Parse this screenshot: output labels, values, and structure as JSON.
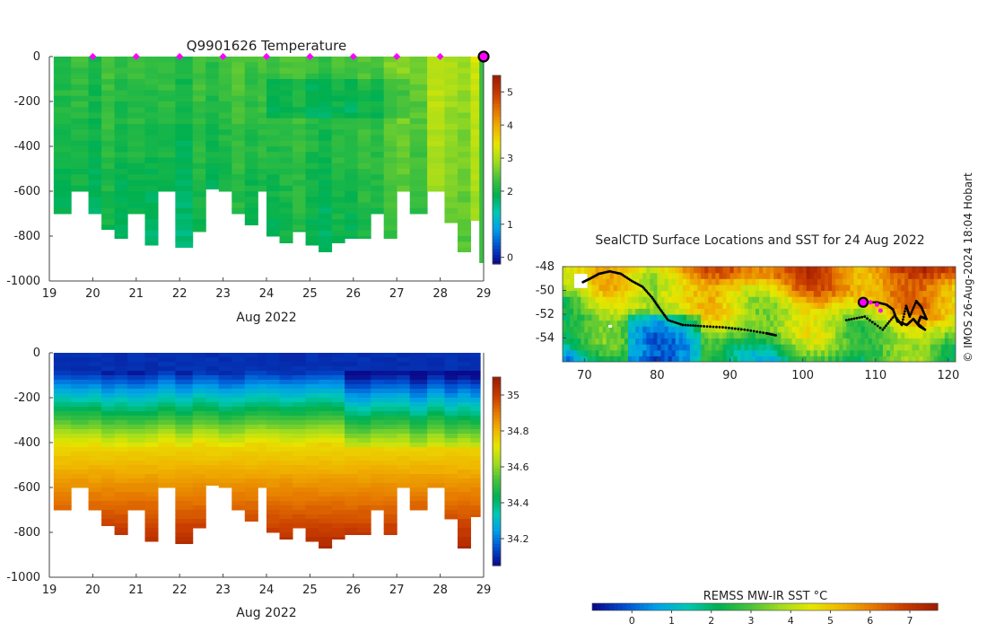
{
  "colors": {
    "temperature_scale": [
      "#0a0a8c",
      "#0050d0",
      "#00a0e8",
      "#00c8b4",
      "#00b050",
      "#46c23c",
      "#a0dc1e",
      "#e6e600",
      "#f0b400",
      "#e67800",
      "#c83c00",
      "#a01e00"
    ],
    "salinity_scale": [
      "#0a0a8c",
      "#0050d0",
      "#00a0e8",
      "#00c8b4",
      "#00b050",
      "#46c23c",
      "#a0dc1e",
      "#e6e600",
      "#f0b400",
      "#e67800",
      "#c83c00",
      "#a01e00"
    ],
    "sst_scale": [
      "#0a0a8c",
      "#0050d0",
      "#00a0e8",
      "#00c8b4",
      "#00b050",
      "#46c23c",
      "#a0dc1e",
      "#e6e600",
      "#f0b400",
      "#e67800",
      "#c83c00",
      "#a01e00"
    ],
    "profile_marker": "#ff00ff",
    "track": "#000000"
  },
  "chart_data": [
    {
      "id": "temperature",
      "type": "heatmap",
      "title": "Q9901626  Temperature",
      "xlabel": "Aug 2022",
      "ylabel": "",
      "xlim": [
        19,
        29
      ],
      "ylim": [
        -1000,
        0
      ],
      "x_ticks": [
        "19",
        "20",
        "21",
        "22",
        "23",
        "24",
        "25",
        "26",
        "27",
        "28",
        "29"
      ],
      "y_ticks": [
        "0",
        "-200",
        "-400",
        "-600",
        "-800",
        "-1000"
      ],
      "profile_markers_x": [
        20,
        21,
        22,
        23,
        24,
        25,
        26,
        27,
        28,
        29
      ],
      "latest_profile_x": 29,
      "colorbar": {
        "range": [
          -0.2,
          5.5
        ],
        "ticks": [
          "0",
          "1",
          "2",
          "3",
          "4",
          "5"
        ]
      },
      "profiles": {
        "x_start": [
          19.1,
          19.5,
          19.9,
          20.2,
          20.5,
          20.8,
          21.2,
          21.5,
          21.9,
          22.3,
          22.6,
          22.9,
          23.2,
          23.5,
          23.8,
          24.0,
          24.3,
          24.6,
          24.9,
          25.2,
          25.5,
          25.8,
          26.1,
          26.4,
          26.7,
          27.0,
          27.3,
          27.7,
          28.1,
          28.4,
          28.7
        ],
        "max_depth": [
          700,
          600,
          700,
          770,
          810,
          700,
          840,
          600,
          850,
          780,
          590,
          600,
          700,
          750,
          600,
          800,
          830,
          780,
          840,
          870,
          830,
          810,
          810,
          700,
          810,
          600,
          700,
          600,
          740,
          870,
          730
        ],
        "surface_temp": [
          2.2,
          2.3,
          2.1,
          2.4,
          2.2,
          2.3,
          2.2,
          2.3,
          2.1,
          2.4,
          2.2,
          2.3,
          2.5,
          2.3,
          2.4,
          2.3,
          2.4,
          2.5,
          2.3,
          2.2,
          2.4,
          2.3,
          2.5,
          2.4,
          2.7,
          2.8,
          2.6,
          3.2,
          3.0,
          2.9,
          3.3
        ]
      }
    },
    {
      "id": "salinity",
      "type": "heatmap",
      "title": "",
      "xlabel": "Aug 2022",
      "ylabel": "",
      "xlim": [
        19,
        29
      ],
      "ylim": [
        -1000,
        0
      ],
      "x_ticks": [
        "19",
        "20",
        "21",
        "22",
        "23",
        "24",
        "25",
        "26",
        "27",
        "28",
        "29"
      ],
      "y_ticks": [
        "0",
        "-200",
        "-400",
        "-600",
        "-800",
        "-1000"
      ],
      "colorbar": {
        "range": [
          34.05,
          35.1
        ],
        "ticks": [
          "34.2",
          "34.4",
          "34.6",
          "34.8",
          "35"
        ]
      },
      "surface_value": 34.1,
      "deep_value": 34.75,
      "bottom_value": 35.05
    },
    {
      "id": "sst_map",
      "type": "heatmap",
      "title": "SealCTD Surface Locations and SST for 24 Aug 2022",
      "xlabel": "",
      "ylabel": "",
      "xlim": [
        67,
        121
      ],
      "ylim": [
        -56,
        -48
      ],
      "x_ticks": [
        "70",
        "80",
        "90",
        "100",
        "110",
        "120"
      ],
      "y_ticks": [
        "-48",
        "-50",
        "-52",
        "-54"
      ],
      "colorbar": {
        "label": "REMSS MW-IR SST °C",
        "range": [
          -1,
          7.7
        ],
        "ticks": [
          "0",
          "1",
          "2",
          "3",
          "4",
          "5",
          "6",
          "7"
        ]
      },
      "track": {
        "lon": [
          69.8,
          70.8,
          72,
          73.5,
          75,
          76.5,
          78,
          79.3,
          80.3,
          81.5,
          83.5,
          86,
          89,
          92,
          95,
          96.5
        ],
        "lat": [
          -49.3,
          -49.0,
          -48.6,
          -48.4,
          -48.6,
          -49.2,
          -49.7,
          -50.6,
          -51.5,
          -52.5,
          -52.9,
          -53.0,
          -53.1,
          -53.3,
          -53.6,
          -53.8
        ]
      },
      "east_track": {
        "lon": [
          106,
          108.5,
          111,
          112.6,
          113.6,
          114.2,
          114.7,
          115.6,
          116.3,
          117.0,
          116.2,
          115.8,
          116.8,
          116.0,
          115.2,
          114.3,
          113.0,
          112.4,
          111.5,
          110.2,
          108.3
        ],
        "lat": [
          -52.5,
          -52.2,
          -53.3,
          -52.1,
          -52.9,
          -51.3,
          -52.2,
          -50.9,
          -51.4,
          -52.4,
          -52.2,
          -52.8,
          -53.3,
          -53.0,
          -52.4,
          -52.9,
          -52.6,
          -51.6,
          -51.2,
          -51.0,
          -51.0
        ]
      },
      "recent_positions": {
        "lon": [
          108.3,
          109.3,
          110.2,
          110.7
        ],
        "lat": [
          -51.0,
          -51.0,
          -51.2,
          -51.7
        ]
      },
      "current_position": {
        "lon": 108.3,
        "lat": -51.0
      }
    }
  ],
  "credit": "© IMOS 26-Aug-2024 18:04 Hobart"
}
